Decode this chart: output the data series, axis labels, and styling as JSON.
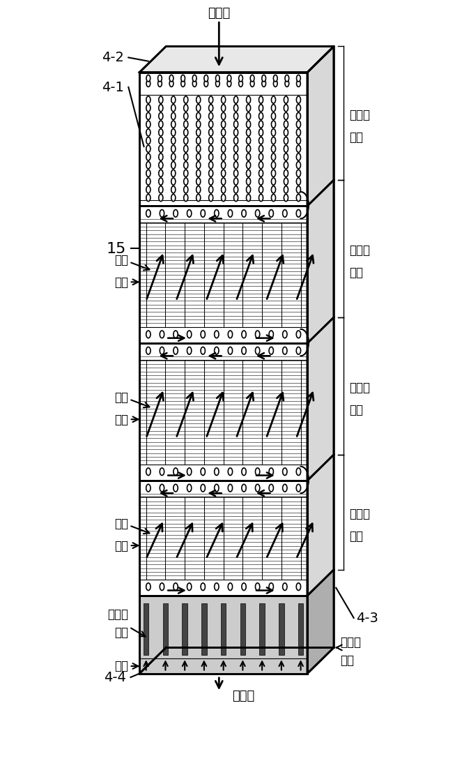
{
  "fig_width": 8.18,
  "fig_height": 13.82,
  "bg_color": "#ffffff",
  "labels": {
    "xi_an_shui": "稀氨水",
    "nong_an_shui": "浓氨水",
    "label_42": "4-2",
    "label_41": "4-1",
    "label_15": "15",
    "label_43": "4-3",
    "label_44": "4-4",
    "di_yi_ji_kong_leng": "第一级\n空冷",
    "di_er_ji_kong_leng": "第二级\n空冷",
    "di_san_ji_kong_leng": "第三级\n空冷",
    "di_yi_ji_shui_leng": "第一级\n水冷",
    "leng_feng": "冷风",
    "dan_qi": "氨气",
    "leng_que_shui_jin_kou": "冷却水\n进口",
    "leng_que_shui_chu_kou": "冷却水\n出口"
  }
}
